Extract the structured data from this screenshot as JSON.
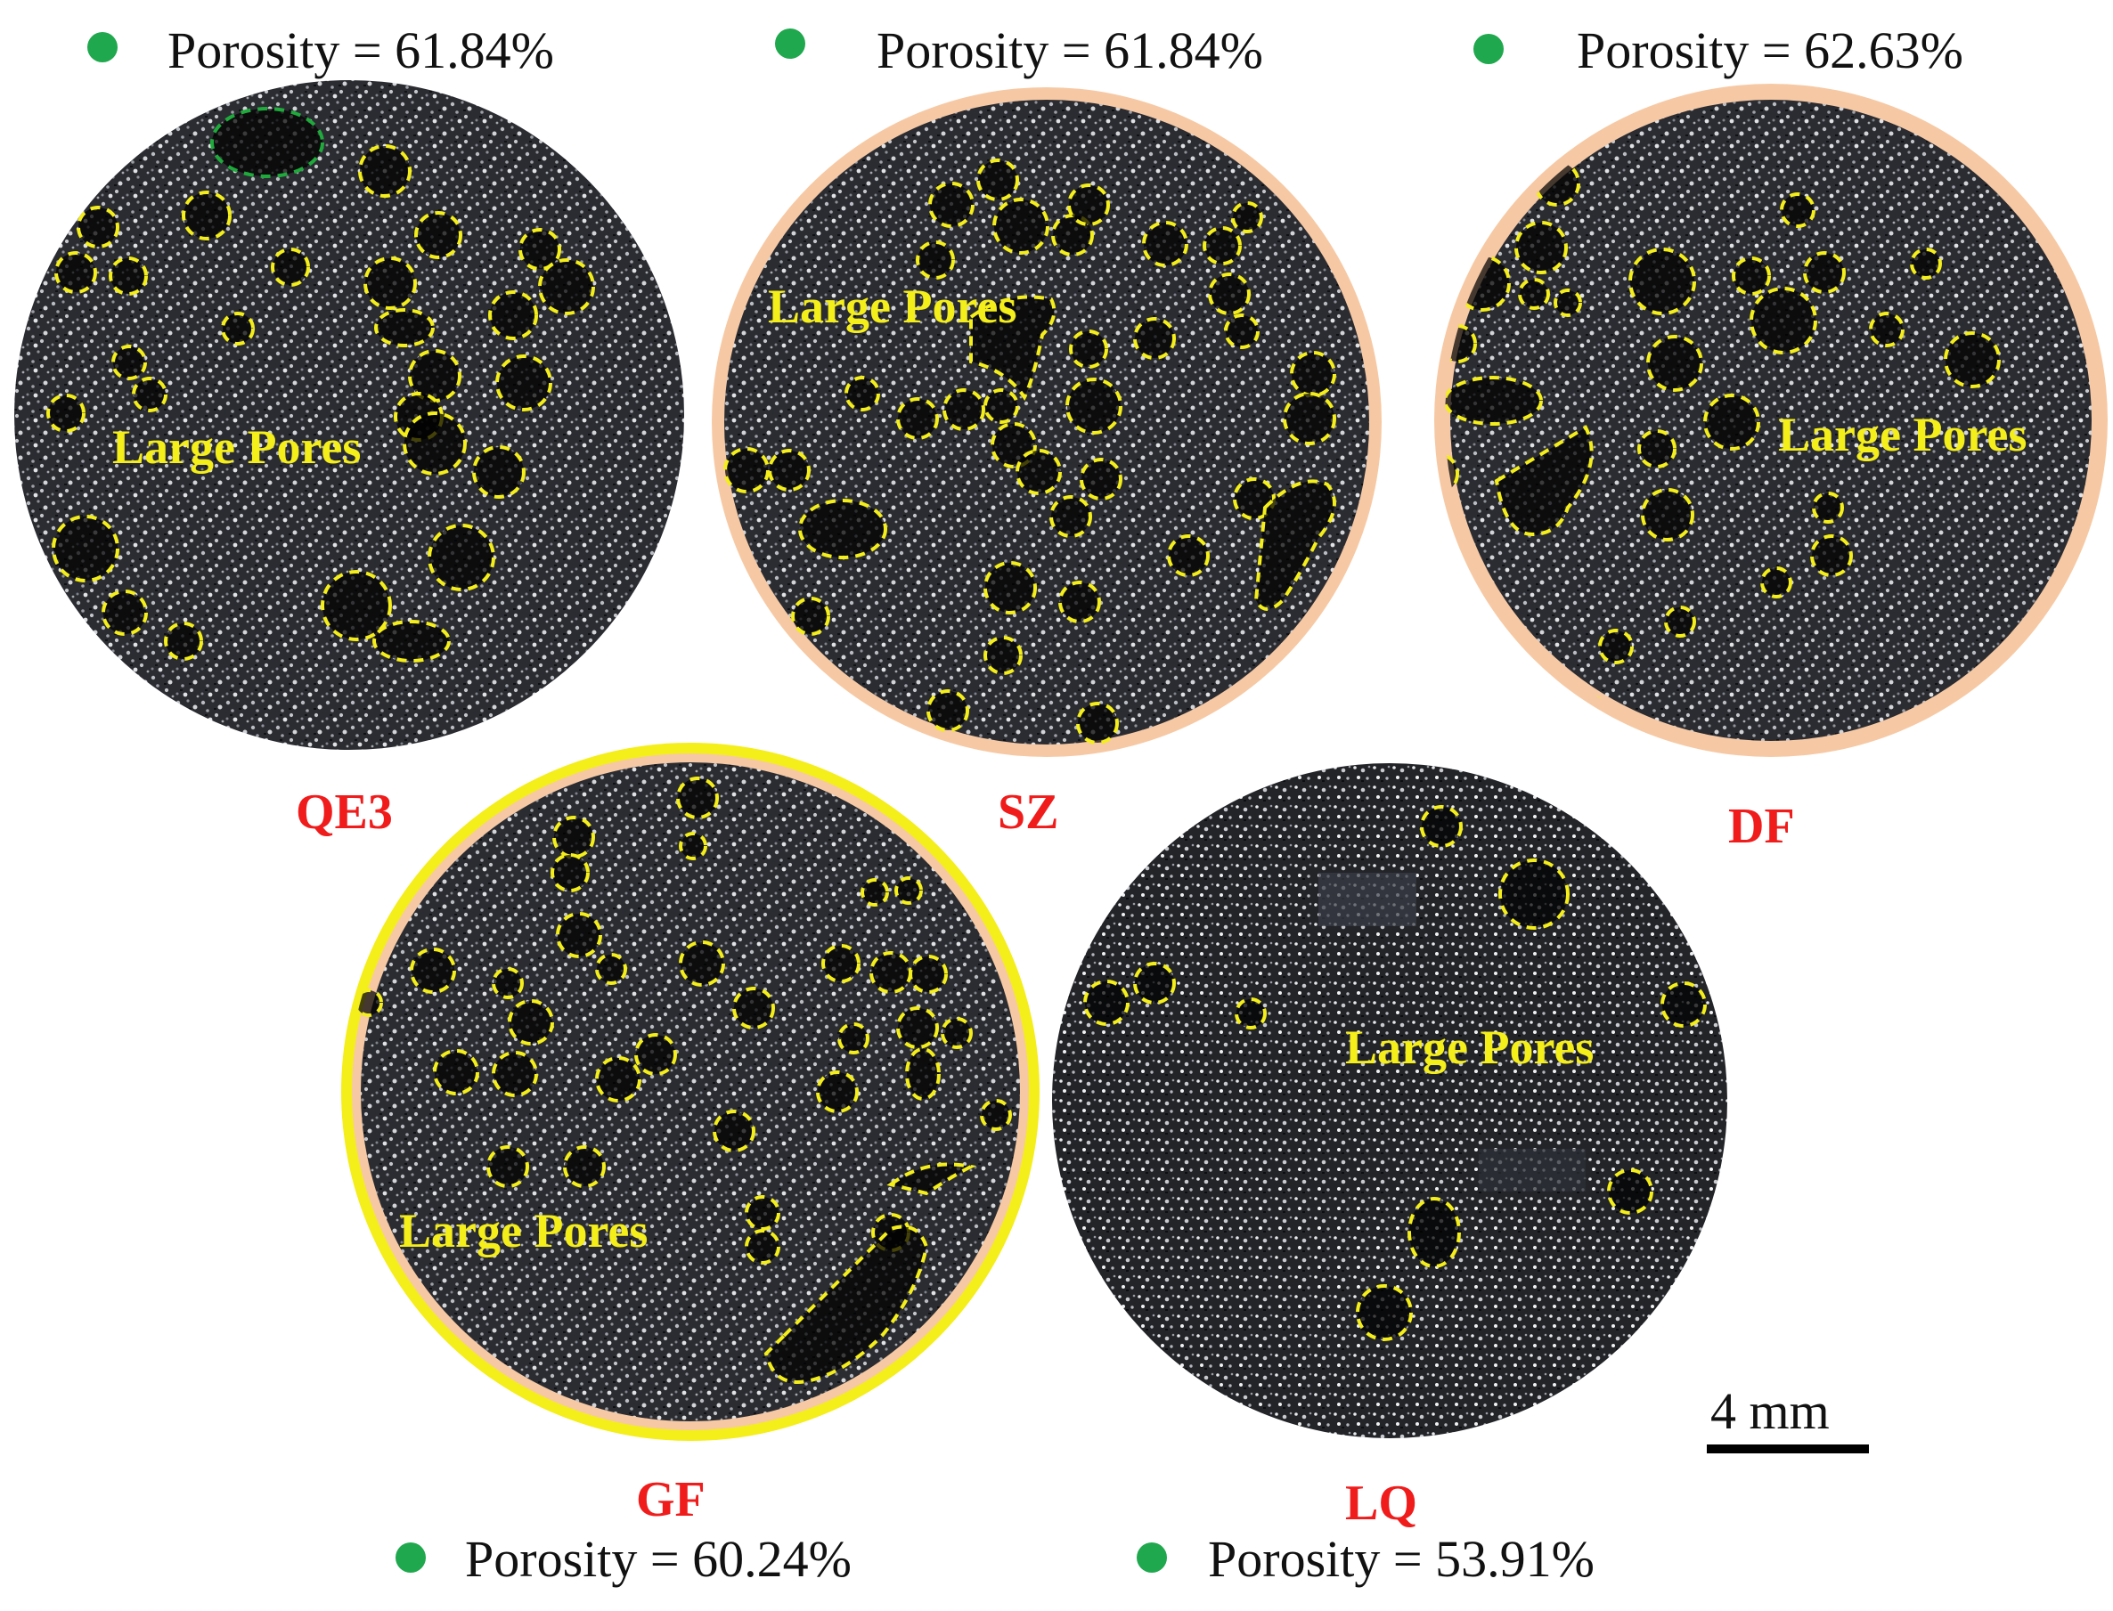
{
  "samples": [
    {
      "id": "QE3",
      "label": "QE3",
      "porosity": "Porosity = 61.84%"
    },
    {
      "id": "SZ",
      "label": "SZ",
      "porosity": "Porosity = 61.84%"
    },
    {
      "id": "DF",
      "label": "DF",
      "porosity": "Porosity = 62.63%"
    },
    {
      "id": "GF",
      "label": "GF",
      "porosity": "Porosity = 60.24%"
    },
    {
      "id": "LQ",
      "label": "LQ",
      "porosity": "Porosity = 53.91%"
    }
  ],
  "annotation": "Large Pores",
  "scale_bar": "4 mm",
  "colors": {
    "porosity_dot": "#1fa84d",
    "sample_label": "#f01c1c",
    "pore_outline": "#f4ee1a",
    "highlight_pore_outline": "#1faa3c",
    "background_halo": "#f6c9a4",
    "ring_GF": "#f4ee1a"
  }
}
